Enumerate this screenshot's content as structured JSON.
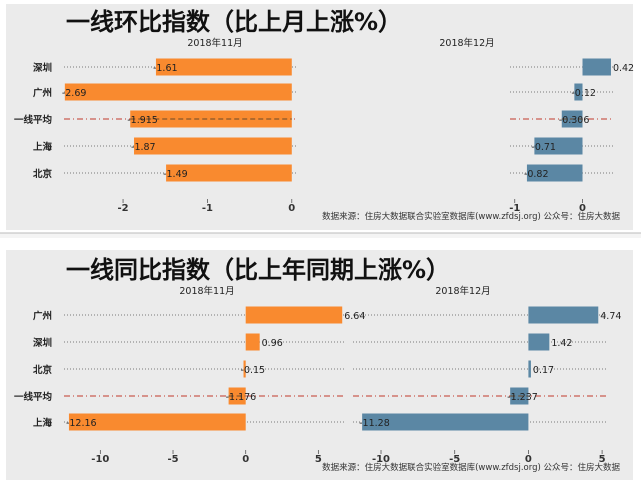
{
  "colors": {
    "orange": "#F98A2F",
    "blue": "#5B87A4",
    "dash": "#C0392B",
    "panel_bg": "#EBEBEB"
  },
  "chart_data": [
    {
      "type": "bar",
      "orientation": "horizontal",
      "title": "一线环比指数（比上月上涨%）",
      "source": "数据来源：住房大数据联合实验室数据库(www.zfdsj.org) 公众号：住房大数据",
      "categories": [
        "深圳",
        "广州",
        "一线平均",
        "上海",
        "北京"
      ],
      "reference_category": "一线平均",
      "series": [
        {
          "name": "2018年11月",
          "color": "#F98A2F",
          "values": [
            -1.61,
            -2.69,
            -1.915,
            -1.87,
            -1.49
          ],
          "labels": [
            "-1.61",
            "-2.69",
            "-1.915",
            "-1.87",
            "-1.49"
          ],
          "xlim": [
            -2.7,
            0.05
          ],
          "ticks": [
            -2,
            -1,
            0
          ]
        },
        {
          "name": "2018年12月",
          "color": "#5B87A4",
          "values": [
            0.42,
            -0.12,
            -0.306,
            -0.71,
            -0.82
          ],
          "labels": [
            "0.42",
            "-0.12",
            "-0.306",
            "-0.71",
            "-0.82"
          ],
          "xlim": [
            -1.07,
            0.45
          ],
          "ticks": [
            -1,
            0
          ]
        }
      ]
    },
    {
      "type": "bar",
      "orientation": "horizontal",
      "title": "一线同比指数（比上年同期上涨%）",
      "source": "数据来源：住房大数据联合实验室数据库(www.zfdsj.org) 公众号：住房大数据",
      "categories": [
        "广州",
        "深圳",
        "北京",
        "一线平均",
        "上海"
      ],
      "reference_category": "一线平均",
      "series": [
        {
          "name": "2018年11月",
          "color": "#F98A2F",
          "values": [
            6.64,
            0.96,
            -0.15,
            -1.176,
            -12.16
          ],
          "labels": [
            "6.64",
            "0.96",
            "-0.15",
            "-1.176",
            "-12.16"
          ],
          "xlim": [
            -12.5,
            6.9
          ],
          "ticks": [
            -10,
            -5,
            0,
            5
          ]
        },
        {
          "name": "2018年12月",
          "color": "#5B87A4",
          "values": [
            4.74,
            1.42,
            0.17,
            -1.237,
            -11.28
          ],
          "labels": [
            "4.74",
            "1.42",
            "0.17",
            "-1.237",
            "-11.28"
          ],
          "xlim": [
            -11.9,
            5.4
          ],
          "ticks": [
            -10,
            -5,
            0,
            5
          ]
        }
      ]
    }
  ]
}
